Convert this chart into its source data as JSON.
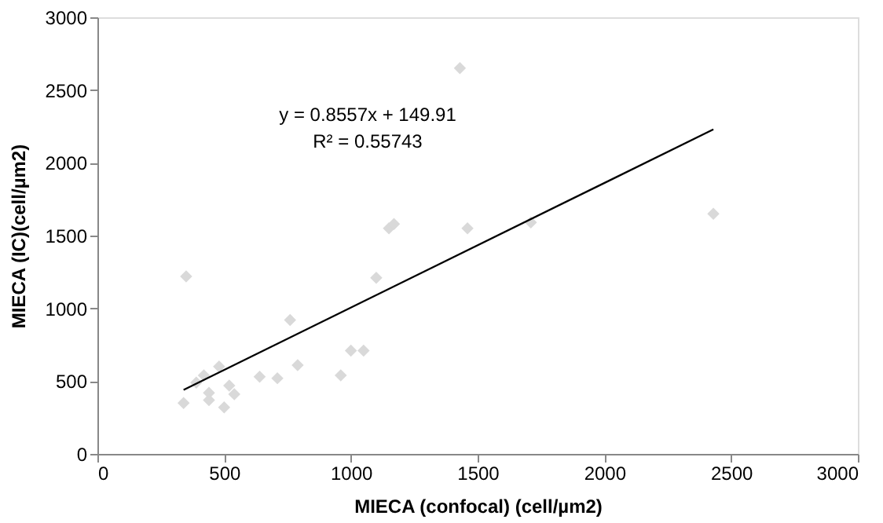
{
  "chart_data": {
    "type": "scatter",
    "xlabel": "MIECA (confocal) (cell/µm2)",
    "ylabel": "MIECA (IC)(cell/µm2)",
    "annotations": [
      "y = 0.8557x + 149.91",
      "R² = 0.55743"
    ],
    "xlim": [
      0,
      3000
    ],
    "ylim": [
      0,
      3000
    ],
    "xticks": [
      0,
      500,
      1000,
      1500,
      2000,
      2500,
      3000
    ],
    "yticks": [
      0,
      500,
      1000,
      1500,
      2000,
      2500,
      3000
    ],
    "grid": false,
    "series": [
      {
        "color": "#d9d9d9",
        "marker": "diamond",
        "x": [
          340,
          350,
          390,
          420,
          480,
          440,
          440,
          500,
          520,
          540,
          640,
          710,
          760,
          790,
          960,
          1000,
          1050,
          1100,
          1150,
          1170,
          1460,
          1430,
          1710,
          2430
        ],
        "values": [
          350,
          1220,
          490,
          540,
          600,
          420,
          370,
          320,
          470,
          410,
          530,
          520,
          920,
          610,
          540,
          710,
          710,
          1210,
          1550,
          1580,
          1550,
          2650,
          1590,
          1650
        ]
      },
      {
        "type": "line",
        "color": "#000000",
        "marker": "none",
        "x": [
          340,
          2430
        ],
        "values": [
          440,
          2230
        ]
      }
    ]
  }
}
